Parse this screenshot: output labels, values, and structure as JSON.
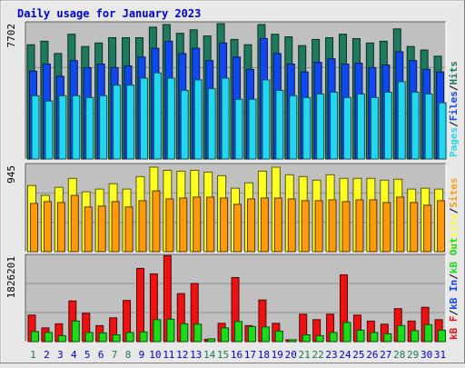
{
  "chart_data": [
    {
      "type": "bar",
      "title": "Daily usage for January 2023",
      "panel": "hits-files-pages",
      "ylabel_max": "7702",
      "legend": [
        "Pages",
        "/",
        "Files",
        "/",
        "Hits"
      ],
      "categories": [
        "1",
        "2",
        "3",
        "4",
        "5",
        "6",
        "7",
        "8",
        "9",
        "10",
        "11",
        "12",
        "13",
        "14",
        "15",
        "16",
        "17",
        "18",
        "19",
        "20",
        "21",
        "22",
        "23",
        "24",
        "25",
        "26",
        "27",
        "28",
        "29",
        "30",
        "31"
      ],
      "series": [
        {
          "name": "Hits",
          "values": [
            6500,
            6700,
            6000,
            7100,
            6400,
            6600,
            6900,
            6900,
            6900,
            7500,
            7650,
            7150,
            7350,
            7000,
            7700,
            6800,
            6500,
            7650,
            7100,
            6950,
            6450,
            6800,
            6900,
            7100,
            6850,
            6600,
            6700,
            7400,
            6400,
            6200,
            5850
          ]
        },
        {
          "name": "Files",
          "values": [
            5000,
            5400,
            4700,
            5600,
            5200,
            5400,
            5200,
            5300,
            5800,
            6300,
            6700,
            6000,
            6300,
            5600,
            6600,
            5800,
            5100,
            6850,
            6000,
            5400,
            4950,
            5500,
            5700,
            5400,
            5450,
            5200,
            5350,
            6100,
            5600,
            5100,
            4950
          ]
        },
        {
          "name": "Pages",
          "values": [
            3600,
            3300,
            3600,
            3600,
            3500,
            3600,
            4200,
            4200,
            4600,
            4900,
            4600,
            3900,
            4500,
            4000,
            4600,
            3400,
            3400,
            4500,
            3900,
            3600,
            3500,
            3700,
            3800,
            3500,
            3700,
            3500,
            3800,
            4400,
            3800,
            3700,
            3200
          ]
        }
      ]
    },
    {
      "type": "bar",
      "panel": "visits-sites",
      "ylabel_max": "945",
      "legend": [
        "Visits",
        "/",
        "Sites"
      ],
      "categories": [
        "1",
        "2",
        "3",
        "4",
        "5",
        "6",
        "7",
        "8",
        "9",
        "10",
        "11",
        "12",
        "13",
        "14",
        "15",
        "16",
        "17",
        "18",
        "19",
        "20",
        "21",
        "22",
        "23",
        "24",
        "25",
        "26",
        "27",
        "28",
        "29",
        "30",
        "31"
      ],
      "series": [
        {
          "name": "Visits",
          "values": [
            740,
            630,
            720,
            820,
            670,
            700,
            760,
            700,
            840,
            945,
            910,
            900,
            910,
            890,
            850,
            710,
            770,
            900,
            945,
            860,
            840,
            800,
            860,
            820,
            820,
            820,
            800,
            810,
            700,
            710,
            700
          ]
        },
        {
          "name": "Sites",
          "values": [
            540,
            560,
            550,
            630,
            500,
            510,
            560,
            500,
            570,
            680,
            590,
            600,
            610,
            610,
            600,
            530,
            590,
            600,
            600,
            590,
            570,
            570,
            580,
            560,
            580,
            580,
            550,
            610,
            550,
            520,
            570
          ]
        }
      ]
    },
    {
      "type": "bar",
      "panel": "kbin-kbout-kbf",
      "ylabel_max": "1826201",
      "legend": [
        "kB F",
        "/",
        "kB In",
        "/",
        "kB Out"
      ],
      "categories": [
        "1",
        "2",
        "3",
        "4",
        "5",
        "6",
        "7",
        "8",
        "9",
        "10",
        "11",
        "12",
        "13",
        "14",
        "15",
        "16",
        "17",
        "18",
        "19",
        "20",
        "21",
        "22",
        "23",
        "24",
        "25",
        "26",
        "27",
        "28",
        "29",
        "30",
        "31"
      ],
      "series": [
        {
          "name": "kB F",
          "values": [
            580000,
            300000,
            390000,
            890000,
            620000,
            350000,
            520000,
            900000,
            1600000,
            1480000,
            1880000,
            1050000,
            1270000,
            50000,
            400000,
            1400000,
            350000,
            910000,
            400000,
            40000,
            600000,
            480000,
            600000,
            1460000,
            580000,
            450000,
            380000,
            720000,
            450000,
            750000,
            480000
          ]
        },
        {
          "name": "kB In",
          "values": [
            220000,
            200000,
            130000,
            450000,
            200000,
            190000,
            150000,
            200000,
            210000,
            480000,
            490000,
            390000,
            380000,
            60000,
            300000,
            440000,
            330000,
            320000,
            230000,
            40000,
            150000,
            130000,
            200000,
            420000,
            250000,
            200000,
            170000,
            350000,
            240000,
            370000,
            250000
          ]
        },
        {
          "name": "kB Out",
          "values": [
            0,
            0,
            0,
            0,
            0,
            0,
            0,
            0,
            0,
            0,
            0,
            0,
            0,
            0,
            0,
            0,
            0,
            0,
            0,
            0,
            0,
            0,
            0,
            0,
            0,
            0,
            0,
            0,
            0,
            0,
            0
          ]
        }
      ]
    }
  ],
  "colors": {
    "hits": "#1e7a5e",
    "files": "#1048f0",
    "pages": "#22d8f0",
    "visits": "#ffff22",
    "sites": "#ff9a0a",
    "kbf": "#ee1111",
    "kbin": "#18dd18",
    "kbout": "#ff8800",
    "title": "#0000cc",
    "panel_bg": "#c0c0c0",
    "weekend_day": "#1a7a4a",
    "weekday_day": "#0000cc"
  },
  "weekend_days": [
    1,
    7,
    8,
    14,
    15,
    21,
    22,
    28,
    29
  ]
}
